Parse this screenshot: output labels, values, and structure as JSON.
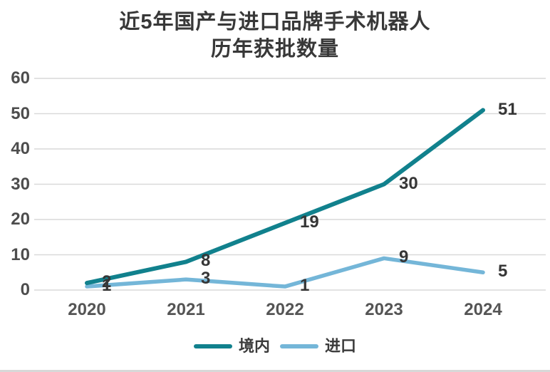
{
  "title": {
    "line1": "近5年国产与进口品牌手术机器人",
    "line2": "历年获批数量"
  },
  "chart_data": {
    "type": "line",
    "x": [
      "2020",
      "2021",
      "2022",
      "2023",
      "2024"
    ],
    "series": [
      {
        "name": "境内",
        "values": [
          2,
          8,
          19,
          30,
          51
        ],
        "color": "#11818d"
      },
      {
        "name": "进口",
        "values": [
          1,
          3,
          1,
          9,
          5
        ],
        "color": "#74b6d8"
      }
    ],
    "ylim": [
      0,
      60
    ],
    "y_ticks": [
      0,
      10,
      20,
      30,
      40,
      50,
      60
    ],
    "grid": true,
    "data_labels": true,
    "legend_position": "bottom"
  },
  "colors": {
    "grid": "#d9d9d9",
    "domestic_line": "#11818d",
    "imported_line": "#74b6d8",
    "title_text": "#383838",
    "tick_text": "#4d4d4d",
    "data_label_text": "#363636",
    "bottom_border": "#d8d8d8"
  }
}
